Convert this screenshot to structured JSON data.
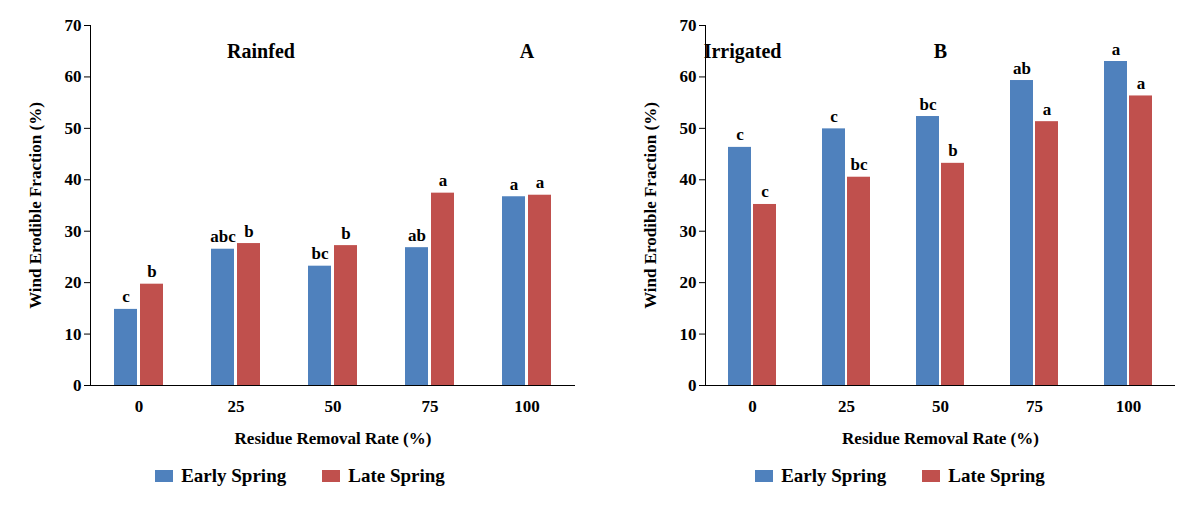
{
  "chart_data": [
    {
      "type": "bar",
      "title": "Rainfed",
      "panel_label": "A",
      "x_label": "Residue Removal Rate (%)",
      "y_label": "Wind Erodible Fraction (%)",
      "categories": [
        "0",
        "25",
        "50",
        "75",
        "100"
      ],
      "series": [
        {
          "name": "Early Spring",
          "color": "#4f81bd",
          "values": [
            14.8,
            26.5,
            23.2,
            26.8,
            36.7
          ],
          "annotations": [
            "c",
            "abc",
            "bc",
            "ab",
            "a"
          ]
        },
        {
          "name": "Late Spring",
          "color": "#c0504d",
          "values": [
            19.7,
            27.6,
            27.2,
            37.4,
            37.0
          ],
          "annotations": [
            "b",
            "b",
            "b",
            "a",
            "a"
          ]
        }
      ],
      "ylim": [
        0,
        70
      ],
      "yticks": [
        0,
        10,
        20,
        30,
        40,
        50,
        60,
        70
      ],
      "grid": false,
      "legend": "bottom"
    },
    {
      "type": "bar",
      "title": "Irrigated",
      "panel_label": "B",
      "x_label": "Residue Removal Rate (%)",
      "y_label": "Wind Erodible Fraction (%)",
      "categories": [
        "0",
        "25",
        "50",
        "75",
        "100"
      ],
      "series": [
        {
          "name": "Early Spring",
          "color": "#4f81bd",
          "values": [
            46.3,
            49.9,
            52.3,
            59.3,
            63.0
          ],
          "annotations": [
            "c",
            "c",
            "bc",
            "ab",
            "a"
          ]
        },
        {
          "name": "Late Spring",
          "color": "#c0504d",
          "values": [
            35.2,
            40.5,
            43.2,
            51.3,
            56.3
          ],
          "annotations": [
            "c",
            "bc",
            "b",
            "a",
            "a"
          ]
        }
      ],
      "ylim": [
        0,
        70
      ],
      "yticks": [
        0,
        10,
        20,
        30,
        40,
        50,
        60,
        70
      ],
      "grid": false,
      "legend": "bottom"
    }
  ]
}
